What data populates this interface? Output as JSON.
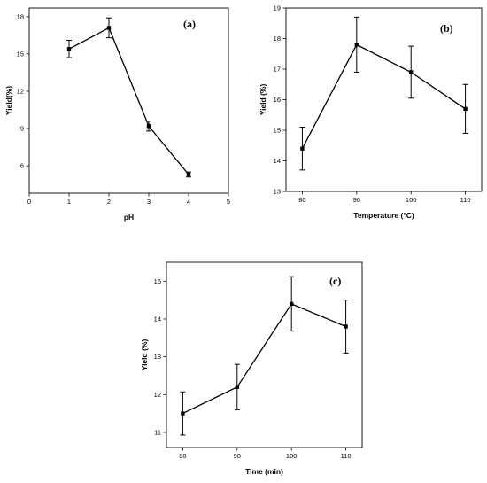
{
  "chart_data": [
    {
      "type": "line",
      "panel_label": "(a)",
      "xlabel": "pH",
      "ylabel": "Yield(%)",
      "xlim": [
        0,
        5
      ],
      "ylim": [
        3.8,
        18.7
      ],
      "xticks": [
        0,
        1,
        2,
        3,
        4,
        5
      ],
      "yticks": [
        6,
        9,
        12,
        15,
        18
      ],
      "x_tick_labels": [
        "0",
        "1",
        "2",
        "3",
        "4",
        "5"
      ],
      "y_tick_labels": [
        "6",
        "9",
        "12",
        "15",
        "18"
      ],
      "series": [
        {
          "x": [
            1,
            2,
            3,
            4
          ],
          "values": [
            15.4,
            17.1,
            9.2,
            5.3
          ],
          "errors": [
            0.7,
            0.8,
            0.4,
            0.2
          ]
        }
      ]
    },
    {
      "type": "line",
      "panel_label": "(b)",
      "xlabel": "Temperature (°C)",
      "ylabel": "Yield (%)",
      "xlim": [
        77,
        113
      ],
      "ylim": [
        13,
        19
      ],
      "xticks": [
        80,
        90,
        100,
        110
      ],
      "yticks": [
        13,
        14,
        15,
        16,
        17,
        18,
        19
      ],
      "x_tick_labels": [
        "80",
        "90",
        "100",
        "110"
      ],
      "y_tick_labels": [
        "13",
        "14",
        "15",
        "16",
        "17",
        "18",
        "19"
      ],
      "series": [
        {
          "x": [
            80,
            90,
            100,
            110
          ],
          "values": [
            14.4,
            17.8,
            16.9,
            15.7
          ],
          "errors": [
            0.7,
            0.9,
            0.85,
            0.8
          ]
        }
      ]
    },
    {
      "type": "line",
      "panel_label": "(c)",
      "xlabel": "Time (min)",
      "ylabel": "Yield (%)",
      "xlim": [
        77,
        113
      ],
      "ylim": [
        10.6,
        15.5
      ],
      "xticks": [
        80,
        90,
        100,
        110
      ],
      "yticks": [
        11,
        12,
        13,
        14,
        15
      ],
      "x_tick_labels": [
        "80",
        "90",
        "100",
        "110"
      ],
      "y_tick_labels": [
        "11",
        "12",
        "13",
        "14",
        "15"
      ],
      "series": [
        {
          "x": [
            80,
            90,
            100,
            110
          ],
          "values": [
            11.5,
            12.2,
            14.4,
            13.8
          ],
          "errors": [
            0.57,
            0.6,
            0.72,
            0.7
          ]
        }
      ]
    }
  ]
}
